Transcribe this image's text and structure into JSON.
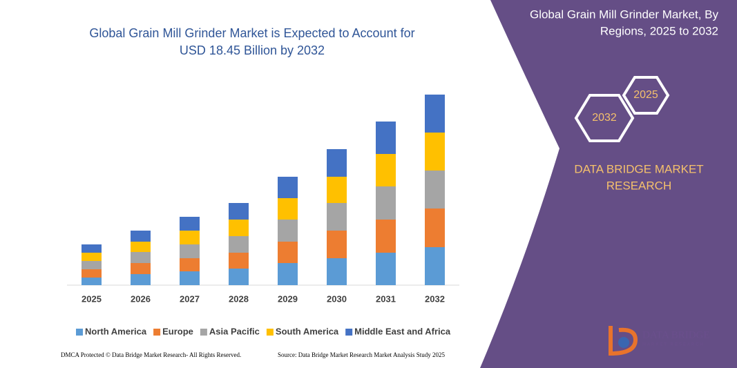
{
  "chart_data": {
    "type": "stacked_bar",
    "title": [
      "Global Grain Mill Grinder Market is Expected to Account for",
      "USD 18.45 Billion by 2032"
    ],
    "categories": [
      "2025",
      "2026",
      "2027",
      "2028",
      "2029",
      "2030",
      "2031",
      "2032"
    ],
    "series": [
      {
        "name": "North America",
        "color": "#5b9bd5",
        "values": [
          11,
          16,
          20,
          24,
          32,
          39,
          47,
          55
        ]
      },
      {
        "name": "Europe",
        "color": "#ed7d31",
        "values": [
          12,
          16,
          19,
          23,
          31,
          40,
          48,
          56
        ]
      },
      {
        "name": "Asia Pacific",
        "color": "#a5a5a5",
        "values": [
          12,
          16,
          20,
          24,
          32,
          40,
          48,
          55
        ]
      },
      {
        "name": "South America",
        "color": "#ffc000",
        "values": [
          12,
          15,
          20,
          24,
          31,
          38,
          47,
          55
        ]
      },
      {
        "name": "Middle East and Africa",
        "color": "#4472c4",
        "values": [
          12,
          16,
          20,
          24,
          31,
          40,
          47,
          55
        ]
      }
    ],
    "ylim": [
      0,
      290
    ]
  },
  "panel": {
    "title": [
      "Global Grain Mill Grinder Market, By",
      "Regions, 2025 to 2032"
    ],
    "hex_back": "2025",
    "hex_front": "2032",
    "brand": [
      "DATA BRIDGE MARKET",
      "RESEARCH"
    ],
    "logo": [
      "DATA BRIDGE",
      "MARKET RESEARCH"
    ]
  },
  "footer": {
    "left": "DMCA Protected © Data Bridge Market Research- All Rights Reserved.",
    "right": "Source: Data Bridge Market Research Market Analysis Study 2025"
  }
}
